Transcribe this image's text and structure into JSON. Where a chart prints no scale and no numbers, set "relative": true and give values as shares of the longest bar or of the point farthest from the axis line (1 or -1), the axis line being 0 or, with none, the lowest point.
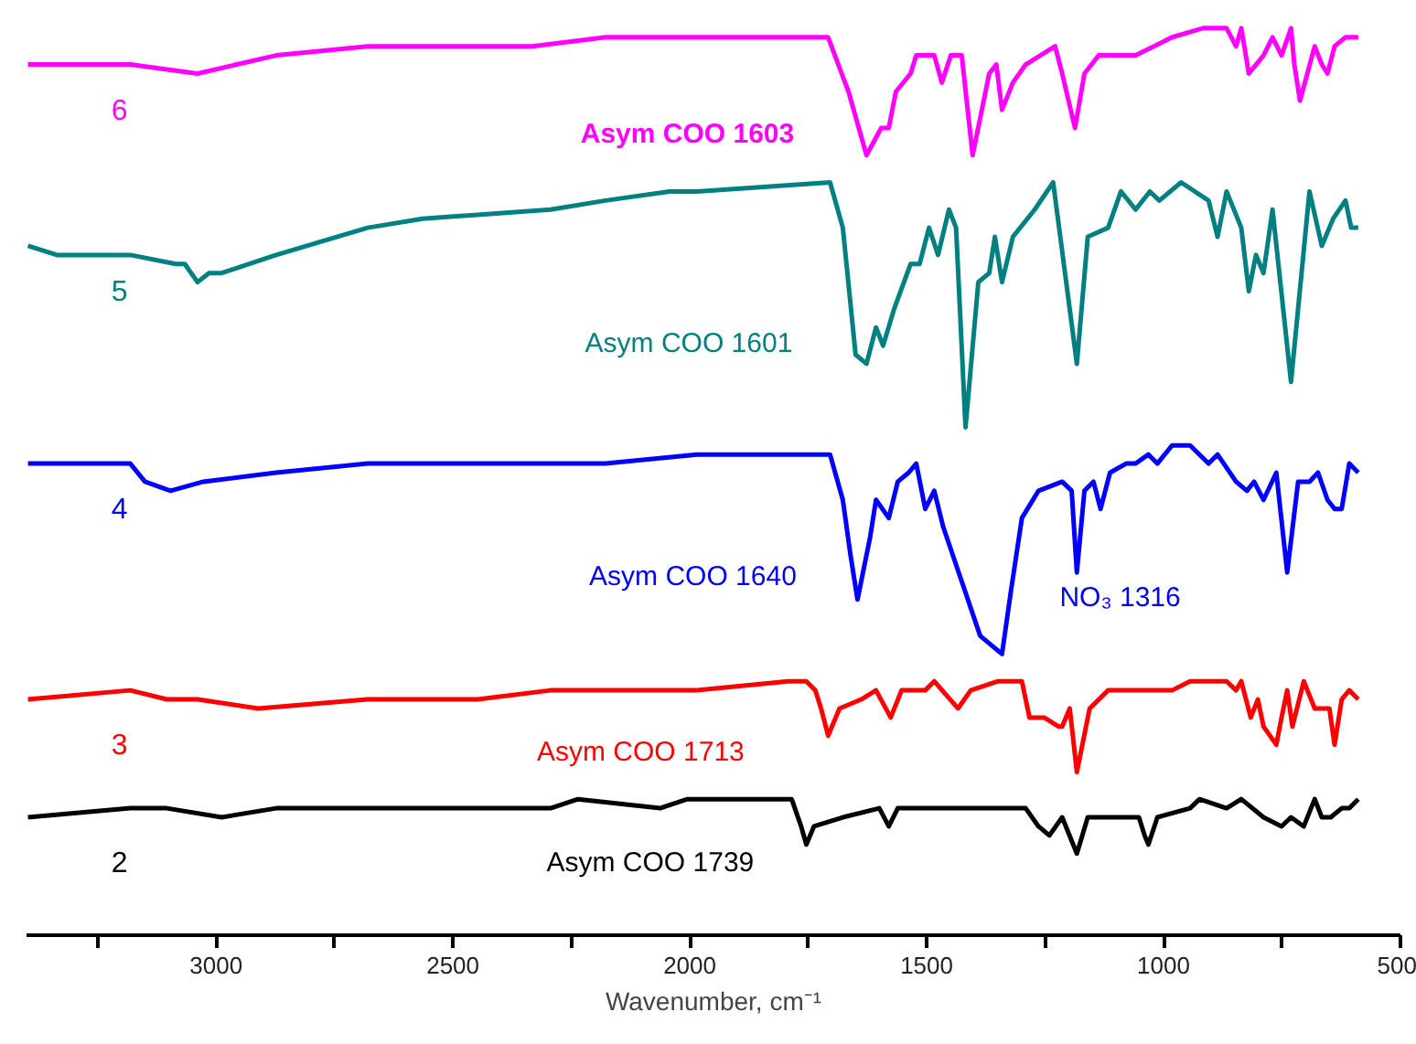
{
  "chart_data": {
    "type": "line",
    "relative": true,
    "xlabel": "Wavenumber, cm⁻¹",
    "xlim": [
      3400,
      500
    ],
    "xticks": [
      {
        "value": 3250,
        "label": null
      },
      3000,
      {
        "value": 2750,
        "label": null
      },
      2500,
      {
        "value": 2250,
        "label": null
      },
      2000,
      {
        "value": 1750,
        "label": null
      },
      1500,
      {
        "value": 1250,
        "label": null
      },
      1000,
      {
        "value": 750,
        "label": null
      },
      500
    ],
    "tick_labels": "x",
    "grid": false,
    "legend": false,
    "marker": "none",
    "line_style": "solid",
    "series": [
      {
        "name": "6",
        "color": "#ff00ff",
        "x": [
          3397,
          3181,
          3039,
          2873,
          2680,
          2487,
          2333,
          2178,
          1985,
          1708,
          1665,
          1627,
          1596,
          1580,
          1565,
          1534,
          1522,
          1484,
          1468,
          1449,
          1426,
          1403,
          1368,
          1353,
          1341,
          1318,
          1291,
          1229,
          1214,
          1187,
          1167,
          1137,
          1059,
          982,
          917,
          867,
          847,
          836,
          820,
          789,
          770,
          751,
          731,
          724,
          712,
          681,
          666,
          654,
          639,
          616,
          604,
          589
        ],
        "values": [
          0.96,
          0.96,
          0.95,
          0.97,
          0.98,
          0.98,
          0.98,
          0.99,
          0.99,
          0.99,
          0.93,
          0.86,
          0.89,
          0.89,
          0.93,
          0.95,
          0.97,
          0.97,
          0.94,
          0.97,
          0.97,
          0.86,
          0.95,
          0.96,
          0.91,
          0.94,
          0.96,
          0.98,
          0.95,
          0.89,
          0.95,
          0.97,
          0.97,
          0.99,
          1.0,
          1.0,
          0.98,
          1.0,
          0.95,
          0.97,
          0.99,
          0.97,
          1.0,
          0.96,
          0.92,
          0.98,
          0.96,
          0.95,
          0.98,
          0.99,
          0.99,
          0.99
        ]
      },
      {
        "name": "5",
        "color": "#008080",
        "x": [
          3397,
          3336,
          3181,
          3085,
          3066,
          3039,
          3015,
          2988,
          2931,
          2873,
          2680,
          2564,
          2294,
          2178,
          2043,
          1985,
          1704,
          1677,
          1650,
          1627,
          1607,
          1592,
          1569,
          1534,
          1515,
          1495,
          1476,
          1453,
          1438,
          1418,
          1391,
          1368,
          1356,
          1341,
          1318,
          1272,
          1233,
          1218,
          1183,
          1160,
          1117,
          1090,
          1059,
          1029,
          1009,
          963,
          905,
          886,
          867,
          836,
          820,
          805,
          789,
          770,
          731,
          692,
          666,
          642,
          616,
          604,
          589
        ],
        "values": [
          0.76,
          0.75,
          0.75,
          0.74,
          0.74,
          0.72,
          0.73,
          0.73,
          0.74,
          0.75,
          0.78,
          0.79,
          0.8,
          0.81,
          0.82,
          0.82,
          0.83,
          0.78,
          0.64,
          0.63,
          0.67,
          0.65,
          0.69,
          0.74,
          0.74,
          0.78,
          0.75,
          0.8,
          0.78,
          0.56,
          0.72,
          0.73,
          0.77,
          0.72,
          0.77,
          0.8,
          0.83,
          0.77,
          0.63,
          0.77,
          0.78,
          0.82,
          0.8,
          0.82,
          0.81,
          0.83,
          0.81,
          0.77,
          0.82,
          0.78,
          0.71,
          0.75,
          0.73,
          0.8,
          0.61,
          0.82,
          0.76,
          0.79,
          0.81,
          0.78,
          0.78
        ]
      },
      {
        "name": "4",
        "color": "#0000ff",
        "x": [
          3397,
          3181,
          3150,
          3096,
          3027,
          2873,
          2680,
          2410,
          2178,
          1985,
          1723,
          1704,
          1677,
          1661,
          1646,
          1619,
          1607,
          1580,
          1561,
          1538,
          1522,
          1503,
          1484,
          1465,
          1426,
          1387,
          1341,
          1322,
          1299,
          1264,
          1214,
          1194,
          1183,
          1167,
          1148,
          1133,
          1113,
          1079,
          1059,
          1032,
          1013,
          982,
          944,
          905,
          886,
          847,
          824,
          809,
          789,
          762,
          739,
          716,
          692,
          674,
          654,
          639,
          624,
          608,
          589
        ],
        "values": [
          0.52,
          0.52,
          0.5,
          0.49,
          0.5,
          0.51,
          0.52,
          0.52,
          0.52,
          0.53,
          0.53,
          0.53,
          0.48,
          0.42,
          0.37,
          0.44,
          0.48,
          0.46,
          0.5,
          0.51,
          0.52,
          0.47,
          0.49,
          0.45,
          0.39,
          0.33,
          0.31,
          0.38,
          0.46,
          0.49,
          0.5,
          0.49,
          0.4,
          0.49,
          0.5,
          0.47,
          0.51,
          0.52,
          0.52,
          0.53,
          0.52,
          0.54,
          0.54,
          0.52,
          0.53,
          0.5,
          0.49,
          0.5,
          0.48,
          0.51,
          0.4,
          0.5,
          0.5,
          0.51,
          0.48,
          0.47,
          0.47,
          0.52,
          0.51
        ]
      },
      {
        "name": "3",
        "color": "#ff0000",
        "x": [
          3397,
          3181,
          3104,
          3039,
          2911,
          2680,
          2448,
          2294,
          2178,
          2063,
          1985,
          1792,
          1754,
          1735,
          1723,
          1708,
          1684,
          1638,
          1607,
          1576,
          1553,
          1522,
          1503,
          1484,
          1434,
          1407,
          1349,
          1299,
          1283,
          1252,
          1221,
          1214,
          1198,
          1183,
          1156,
          1117,
          1059,
          982,
          944,
          905,
          867,
          847,
          836,
          816,
          801,
          789,
          762,
          751,
          739,
          728,
          704,
          681,
          666,
          650,
          639,
          624,
          608,
          589
        ],
        "values": [
          0.26,
          0.27,
          0.26,
          0.26,
          0.25,
          0.26,
          0.26,
          0.27,
          0.27,
          0.27,
          0.27,
          0.28,
          0.28,
          0.27,
          0.25,
          0.22,
          0.25,
          0.26,
          0.27,
          0.24,
          0.27,
          0.27,
          0.27,
          0.28,
          0.25,
          0.27,
          0.28,
          0.28,
          0.24,
          0.24,
          0.23,
          0.23,
          0.25,
          0.18,
          0.25,
          0.27,
          0.27,
          0.27,
          0.28,
          0.28,
          0.28,
          0.27,
          0.28,
          0.24,
          0.26,
          0.23,
          0.21,
          0.24,
          0.27,
          0.23,
          0.28,
          0.25,
          0.25,
          0.25,
          0.21,
          0.26,
          0.27,
          0.26
        ]
      },
      {
        "name": "2",
        "color": "#000000",
        "x": [
          3397,
          3181,
          3104,
          2988,
          2873,
          2680,
          2371,
          2294,
          2236,
          2063,
          2005,
          1985,
          1792,
          1785,
          1765,
          1754,
          1738,
          1677,
          1600,
          1580,
          1561,
          1484,
          1407,
          1291,
          1264,
          1241,
          1214,
          1183,
          1160,
          1099,
          1052,
          1040,
          1032,
          1013,
          944,
          924,
          867,
          836,
          789,
          751,
          731,
          704,
          681,
          666,
          647,
          624,
          608,
          589
        ],
        "values": [
          0.13,
          0.14,
          0.14,
          0.13,
          0.14,
          0.14,
          0.14,
          0.14,
          0.15,
          0.14,
          0.15,
          0.15,
          0.15,
          0.15,
          0.12,
          0.1,
          0.12,
          0.13,
          0.14,
          0.12,
          0.14,
          0.14,
          0.14,
          0.14,
          0.12,
          0.11,
          0.13,
          0.09,
          0.13,
          0.13,
          0.13,
          0.11,
          0.1,
          0.13,
          0.14,
          0.15,
          0.14,
          0.15,
          0.13,
          0.12,
          0.13,
          0.12,
          0.15,
          0.13,
          0.13,
          0.14,
          0.14,
          0.15
        ]
      }
    ],
    "annotations": [
      "Asym COO 1603",
      "Asym COO 1601",
      "Asym COO 1640",
      "NO₃ 1316",
      "Asym COO 1713",
      "Asym COO 1739"
    ]
  }
}
